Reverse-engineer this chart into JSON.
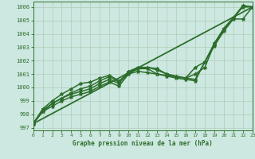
{
  "bg_color": "#cde8e0",
  "line_color": "#2d6e2d",
  "grid_color": "#b0ccb8",
  "title": "Graphe pression niveau de la mer (hPa)",
  "xlim": [
    0,
    23
  ],
  "ylim": [
    996.8,
    1006.4
  ],
  "yticks": [
    997,
    998,
    999,
    1000,
    1001,
    1002,
    1003,
    1004,
    1005,
    1006
  ],
  "xticks": [
    0,
    1,
    2,
    3,
    4,
    5,
    6,
    7,
    8,
    9,
    10,
    11,
    12,
    13,
    14,
    15,
    16,
    17,
    18,
    19,
    20,
    21,
    22,
    23
  ],
  "series": [
    {
      "x": [
        0,
        23
      ],
      "y": [
        997.3,
        1006.0
      ],
      "marker": "",
      "linewidth": 1.3,
      "markersize": 0
    },
    {
      "x": [
        0,
        1,
        2,
        3,
        4,
        5,
        6,
        7,
        8,
        9,
        10,
        11,
        12,
        13,
        14,
        15,
        16,
        17,
        18,
        19,
        20,
        21,
        22,
        23
      ],
      "y": [
        997.3,
        998.2,
        998.6,
        999.0,
        999.3,
        999.5,
        999.7,
        1000.1,
        1000.4,
        1000.1,
        1001.0,
        1001.2,
        1001.1,
        1001.0,
        1000.9,
        1000.8,
        1000.7,
        1000.6,
        1001.9,
        1003.1,
        1004.2,
        1005.1,
        1005.1,
        1006.0
      ],
      "marker": "*",
      "linewidth": 1.1,
      "markersize": 3.5
    },
    {
      "x": [
        0,
        1,
        2,
        3,
        4,
        5,
        6,
        7,
        8,
        9,
        10,
        11,
        12,
        13,
        14,
        15,
        16,
        17,
        18,
        19,
        20,
        21,
        22,
        23
      ],
      "y": [
        997.3,
        998.3,
        998.8,
        999.2,
        999.5,
        999.7,
        999.9,
        1000.3,
        1000.6,
        1000.3,
        1001.1,
        1001.4,
        1001.5,
        1001.3,
        1001.0,
        1000.8,
        1000.7,
        1001.0,
        1001.5,
        1003.2,
        1004.3,
        1005.2,
        1006.1,
        1006.0
      ],
      "marker": "*",
      "linewidth": 1.1,
      "markersize": 3.5
    },
    {
      "x": [
        0,
        1,
        2,
        3,
        4,
        5,
        6,
        7,
        8,
        9,
        10,
        11,
        12,
        13,
        14,
        15,
        16,
        17,
        18,
        19,
        20,
        21,
        22,
        23
      ],
      "y": [
        997.3,
        998.2,
        998.8,
        999.2,
        999.6,
        999.9,
        1000.1,
        1000.5,
        1000.8,
        1000.4,
        1001.2,
        1001.5,
        1001.5,
        1001.4,
        1001.0,
        1000.85,
        1000.7,
        1001.5,
        1001.9,
        1003.3,
        1004.4,
        1005.2,
        1006.0,
        1006.0
      ],
      "marker": "*",
      "linewidth": 1.1,
      "markersize": 3.5
    },
    {
      "x": [
        0,
        1,
        2,
        3,
        4,
        5,
        6,
        7,
        8,
        9,
        10,
        11,
        12,
        13,
        14,
        15,
        16,
        17,
        18,
        19,
        20,
        21,
        22,
        23
      ],
      "y": [
        997.3,
        998.4,
        999.0,
        999.5,
        999.9,
        1000.3,
        1000.4,
        1000.7,
        1000.9,
        1000.5,
        1001.0,
        1001.4,
        1001.4,
        1001.0,
        1000.85,
        1000.7,
        1000.6,
        1000.5,
        1001.9,
        1003.2,
        1004.4,
        1005.2,
        1006.1,
        1006.0
      ],
      "marker": "*",
      "linewidth": 1.1,
      "markersize": 3.5
    }
  ]
}
